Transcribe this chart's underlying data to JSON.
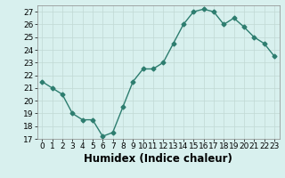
{
  "x": [
    0,
    1,
    2,
    3,
    4,
    5,
    6,
    7,
    8,
    9,
    10,
    11,
    12,
    13,
    14,
    15,
    16,
    17,
    18,
    19,
    20,
    21,
    22,
    23
  ],
  "y": [
    21.5,
    21.0,
    20.5,
    19.0,
    18.5,
    18.5,
    17.2,
    17.5,
    19.5,
    21.5,
    22.5,
    22.5,
    23.0,
    24.5,
    26.0,
    27.0,
    27.2,
    27.0,
    26.0,
    26.5,
    25.8,
    25.0,
    24.5,
    23.5
  ],
  "line_color": "#2d7d6f",
  "marker": "D",
  "marker_size": 2.5,
  "bg_color": "#d8f0ee",
  "grid_color": "#c0d8d4",
  "xlabel": "Humidex (Indice chaleur)",
  "ylim": [
    17,
    27.5
  ],
  "yticks": [
    17,
    18,
    19,
    20,
    21,
    22,
    23,
    24,
    25,
    26,
    27
  ],
  "xlim": [
    -0.5,
    23.5
  ],
  "xticks": [
    0,
    1,
    2,
    3,
    4,
    5,
    6,
    7,
    8,
    9,
    10,
    11,
    12,
    13,
    14,
    15,
    16,
    17,
    18,
    19,
    20,
    21,
    22,
    23
  ],
  "tick_label_size": 6.5,
  "xlabel_size": 8.5,
  "line_width": 1.0
}
